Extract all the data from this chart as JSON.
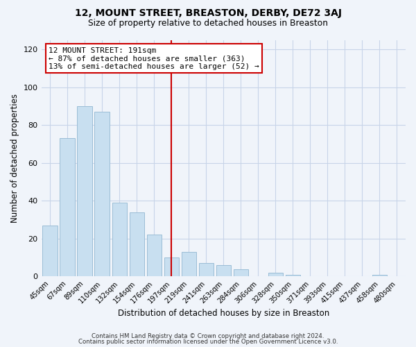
{
  "title": "12, MOUNT STREET, BREASTON, DERBY, DE72 3AJ",
  "subtitle": "Size of property relative to detached houses in Breaston",
  "xlabel": "Distribution of detached houses by size in Breaston",
  "ylabel": "Number of detached properties",
  "bar_labels": [
    "45sqm",
    "67sqm",
    "89sqm",
    "110sqm",
    "132sqm",
    "154sqm",
    "176sqm",
    "197sqm",
    "219sqm",
    "241sqm",
    "263sqm",
    "284sqm",
    "306sqm",
    "328sqm",
    "350sqm",
    "371sqm",
    "393sqm",
    "415sqm",
    "437sqm",
    "458sqm",
    "480sqm"
  ],
  "bar_values": [
    27,
    73,
    90,
    87,
    39,
    34,
    22,
    10,
    13,
    7,
    6,
    4,
    0,
    2,
    1,
    0,
    0,
    0,
    0,
    1,
    0
  ],
  "bar_color": "#c8dff0",
  "bar_edge_color": "#9bbdd6",
  "vline_x_index": 7,
  "vline_color": "#cc0000",
  "annotation_title": "12 MOUNT STREET: 191sqm",
  "annotation_line1": "← 87% of detached houses are smaller (363)",
  "annotation_line2": "13% of semi-detached houses are larger (52) →",
  "annotation_box_edge": "#cc0000",
  "ylim": [
    0,
    125
  ],
  "yticks": [
    0,
    20,
    40,
    60,
    80,
    100,
    120
  ],
  "footer1": "Contains HM Land Registry data © Crown copyright and database right 2024.",
  "footer2": "Contains public sector information licensed under the Open Government Licence v3.0.",
  "bg_color": "#f0f4fa",
  "grid_color": "#c8d4e8"
}
